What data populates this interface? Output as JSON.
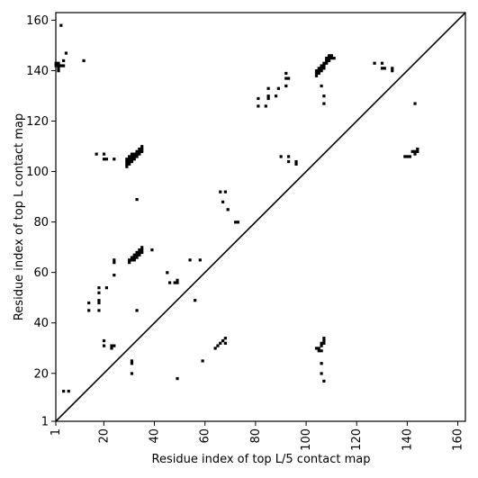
{
  "chart_data": {
    "type": "heatmap",
    "title": "",
    "xlabel": "Residue index of top L/5 contact map",
    "ylabel": "Residue index of top L contact map",
    "xlim": [
      1,
      163
    ],
    "ylim": [
      1,
      163
    ],
    "x_ticks": [
      1,
      20,
      40,
      60,
      80,
      100,
      120,
      140,
      160
    ],
    "y_ticks": [
      1,
      20,
      40,
      60,
      80,
      100,
      120,
      140,
      160
    ],
    "diagonal": true,
    "grid": false,
    "colors": {
      "contact": "#000000",
      "background": "#ffffff",
      "diagonal": "#000000"
    },
    "upper_contacts_top_L": [
      [
        1,
        142
      ],
      [
        1,
        143
      ],
      [
        2,
        142
      ],
      [
        2,
        143
      ],
      [
        2,
        141
      ],
      [
        2,
        140
      ],
      [
        3,
        142
      ],
      [
        4,
        142
      ],
      [
        3,
        158
      ],
      [
        5,
        147
      ],
      [
        4,
        144
      ],
      [
        12,
        144
      ],
      [
        17,
        107
      ],
      [
        20,
        107
      ],
      [
        20,
        105
      ],
      [
        21,
        105
      ],
      [
        24,
        105
      ],
      [
        29,
        102
      ],
      [
        29,
        103
      ],
      [
        29,
        104
      ],
      [
        29,
        105
      ],
      [
        30,
        103
      ],
      [
        30,
        104
      ],
      [
        30,
        105
      ],
      [
        30,
        106
      ],
      [
        31,
        104
      ],
      [
        31,
        105
      ],
      [
        31,
        106
      ],
      [
        31,
        107
      ],
      [
        32,
        105
      ],
      [
        32,
        106
      ],
      [
        32,
        107
      ],
      [
        33,
        106
      ],
      [
        33,
        107
      ],
      [
        33,
        108
      ],
      [
        34,
        107
      ],
      [
        34,
        108
      ],
      [
        34,
        109
      ],
      [
        35,
        108
      ],
      [
        35,
        109
      ],
      [
        35,
        110
      ],
      [
        33,
        89
      ],
      [
        30,
        64
      ],
      [
        30,
        65
      ],
      [
        31,
        65
      ],
      [
        31,
        66
      ],
      [
        32,
        65
      ],
      [
        32,
        66
      ],
      [
        32,
        67
      ],
      [
        33,
        66
      ],
      [
        33,
        67
      ],
      [
        33,
        68
      ],
      [
        34,
        67
      ],
      [
        34,
        68
      ],
      [
        34,
        69
      ],
      [
        35,
        68
      ],
      [
        35,
        69
      ],
      [
        35,
        70
      ],
      [
        39,
        69
      ],
      [
        45,
        60
      ],
      [
        46,
        56
      ],
      [
        48,
        56
      ],
      [
        49,
        57
      ],
      [
        49,
        56
      ],
      [
        54,
        65
      ],
      [
        58,
        65
      ],
      [
        66,
        92
      ],
      [
        68,
        92
      ],
      [
        67,
        88
      ],
      [
        69,
        85
      ],
      [
        72,
        80
      ],
      [
        73,
        80
      ],
      [
        81,
        126
      ],
      [
        81,
        129
      ],
      [
        84,
        126
      ],
      [
        85,
        129
      ],
      [
        85,
        130
      ],
      [
        85,
        133
      ],
      [
        88,
        130
      ],
      [
        89,
        133
      ],
      [
        92,
        134
      ],
      [
        92,
        137
      ],
      [
        92,
        139
      ],
      [
        93,
        137
      ],
      [
        104,
        138
      ],
      [
        104,
        139
      ],
      [
        104,
        140
      ],
      [
        105,
        139
      ],
      [
        105,
        140
      ],
      [
        105,
        141
      ],
      [
        106,
        140
      ],
      [
        106,
        141
      ],
      [
        106,
        142
      ],
      [
        107,
        141
      ],
      [
        107,
        142
      ],
      [
        107,
        143
      ],
      [
        108,
        143
      ],
      [
        108,
        144
      ],
      [
        108,
        145
      ],
      [
        109,
        144
      ],
      [
        109,
        145
      ],
      [
        109,
        146
      ],
      [
        110,
        145
      ],
      [
        110,
        146
      ],
      [
        111,
        145
      ],
      [
        106,
        134
      ],
      [
        107,
        130
      ],
      [
        107,
        127
      ],
      [
        127,
        143
      ],
      [
        130,
        143
      ],
      [
        130,
        141
      ],
      [
        131,
        141
      ],
      [
        134,
        141
      ],
      [
        134,
        140
      ]
    ],
    "lower_contacts_top_L5": [
      [
        4,
        13
      ],
      [
        6,
        13
      ],
      [
        14,
        48
      ],
      [
        14,
        45
      ],
      [
        18,
        45
      ],
      [
        18,
        48
      ],
      [
        18,
        49
      ],
      [
        18,
        52
      ],
      [
        18,
        54
      ],
      [
        21,
        54
      ],
      [
        24,
        59
      ],
      [
        24,
        64
      ],
      [
        24,
        65
      ],
      [
        20,
        31
      ],
      [
        20,
        33
      ],
      [
        23,
        30
      ],
      [
        23,
        31
      ],
      [
        24,
        31
      ],
      [
        31,
        20
      ],
      [
        31,
        24
      ],
      [
        31,
        25
      ],
      [
        33,
        45
      ],
      [
        49,
        18
      ],
      [
        56,
        49
      ],
      [
        59,
        25
      ],
      [
        64,
        30
      ],
      [
        65,
        31
      ],
      [
        66,
        32
      ],
      [
        67,
        33
      ],
      [
        68,
        34
      ],
      [
        68,
        32
      ],
      [
        104,
        30
      ],
      [
        105,
        29
      ],
      [
        105,
        30
      ],
      [
        106,
        29
      ],
      [
        106,
        31
      ],
      [
        106,
        32
      ],
      [
        107,
        32
      ],
      [
        107,
        33
      ],
      [
        107,
        34
      ],
      [
        106,
        24
      ],
      [
        106,
        20
      ],
      [
        107,
        17
      ],
      [
        90,
        106
      ],
      [
        93,
        104
      ],
      [
        93,
        106
      ],
      [
        96,
        103
      ],
      [
        96,
        104
      ],
      [
        139,
        106
      ],
      [
        140,
        106
      ],
      [
        141,
        106
      ],
      [
        142,
        108
      ],
      [
        143,
        108
      ],
      [
        143,
        107
      ],
      [
        144,
        108
      ],
      [
        144,
        109
      ],
      [
        143,
        127
      ]
    ]
  }
}
